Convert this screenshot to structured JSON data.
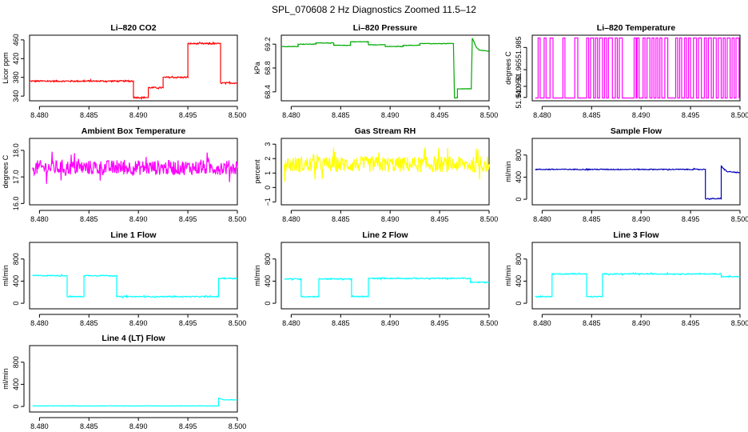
{
  "figure_title": "SPL_070608  2 Hz Diagnostics Zoomed 11.5–12",
  "chart_data": [
    {
      "type": "line",
      "title": "Li–820 CO2",
      "ylabel": "Licor ppm",
      "color": "#ff0000",
      "xlim": [
        8.479,
        8.5
      ],
      "x_ticks": [
        "8.480",
        "8.485",
        "8.490",
        "8.495",
        "8.500"
      ],
      "x_tick_values": [
        8.48,
        8.485,
        8.49,
        8.495,
        8.5
      ],
      "ylim": [
        330,
        470
      ],
      "y_ticks": [
        "340",
        "380",
        "420",
        "460"
      ],
      "y_tick_values": [
        340,
        380,
        420,
        460
      ],
      "noise": 1.5,
      "series": [
        {
          "x": [
            8.479,
            8.4895,
            8.4895,
            8.491,
            8.491,
            8.4925,
            8.4925,
            8.495,
            8.495,
            8.4983,
            8.4983,
            8.5
          ],
          "values": [
            372,
            372,
            337,
            337,
            358,
            358,
            380,
            380,
            452,
            452,
            368,
            368
          ]
        }
      ]
    },
    {
      "type": "line",
      "title": "Li–820 Pressure",
      "ylabel": "kPa",
      "color": "#00aa00",
      "xlim": [
        8.479,
        8.5
      ],
      "x_ticks": [
        "8.480",
        "8.485",
        "8.490",
        "8.495",
        "8.500"
      ],
      "x_tick_values": [
        8.48,
        8.485,
        8.49,
        8.495,
        8.5
      ],
      "ylim": [
        68.25,
        69.35
      ],
      "y_ticks": [
        "68.4",
        "68.8",
        "69.2"
      ],
      "y_tick_values": [
        68.4,
        68.8,
        69.2
      ],
      "noise": 0.004,
      "series": [
        {
          "x": [
            8.479,
            8.4807,
            8.4807,
            8.4825,
            8.4825,
            8.4843,
            8.4843,
            8.486,
            8.486,
            8.4878,
            8.4878,
            8.4895,
            8.4895,
            8.4913,
            8.4913,
            8.493,
            8.493,
            8.4964,
            8.4965,
            8.4968,
            8.4968,
            8.4982,
            8.4983,
            8.4987,
            8.499,
            8.5
          ],
          "values": [
            69.16,
            69.16,
            69.2,
            69.2,
            69.22,
            69.22,
            69.18,
            69.18,
            69.24,
            69.24,
            69.19,
            69.19,
            69.16,
            69.16,
            69.18,
            69.18,
            69.21,
            69.21,
            68.3,
            68.3,
            68.45,
            68.45,
            69.3,
            69.15,
            69.1,
            69.08
          ]
        }
      ]
    },
    {
      "type": "line",
      "title": "Li–820 Temperature",
      "ylabel": "degrees C",
      "color": "#ff00ff",
      "xlim": [
        8.479,
        8.5
      ],
      "x_ticks": [
        "8.480",
        "8.485",
        "8.490",
        "8.495",
        "8.500"
      ],
      "x_tick_values": [
        8.48,
        8.485,
        8.49,
        8.495,
        8.5
      ],
      "ylim": [
        51.937,
        51.996
      ],
      "y_ticks": [
        "51.940",
        "51.950",
        "51.965",
        "51.985"
      ],
      "y_tick_values": [
        51.94,
        51.95,
        51.965,
        51.985
      ],
      "binary": {
        "low": 51.9395,
        "high": 51.9935
      },
      "series": [
        {
          "x": [
            8.4796,
            8.4798,
            8.4802,
            8.4804,
            8.4808,
            8.4811,
            8.4821,
            8.4823,
            8.4833,
            8.4836,
            8.4845,
            8.4847,
            8.4849,
            8.4852,
            8.4854,
            8.4856,
            8.4858,
            8.4861,
            8.4863,
            8.4865,
            8.4867,
            8.4871,
            8.4874,
            8.4876,
            8.4878,
            8.4881,
            8.4893,
            8.4895,
            8.4896,
            8.4898,
            8.4902,
            8.4904,
            8.4906,
            8.4909,
            8.4911,
            8.4913,
            8.4915,
            8.4917,
            8.4919,
            8.4921,
            8.4924,
            8.4927,
            8.4935,
            8.4937,
            8.4939,
            8.4941,
            8.4944,
            8.4946,
            8.4948,
            8.495,
            8.4953,
            8.4956,
            8.4958,
            8.4961,
            8.4964,
            8.4966,
            8.4968,
            8.4971,
            8.4973,
            8.4976,
            8.4978,
            8.4981,
            8.4983,
            8.4985,
            8.4987,
            8.499,
            8.4992,
            8.4994,
            8.4996,
            8.4999
          ]
        }
      ]
    },
    {
      "type": "line",
      "title": "Ambient Box Temperature",
      "ylabel": "degrees C",
      "color": "#ff00ff",
      "xlim": [
        8.479,
        8.5
      ],
      "x_ticks": [
        "8.480",
        "8.485",
        "8.490",
        "8.495",
        "8.500"
      ],
      "x_tick_values": [
        8.48,
        8.485,
        8.49,
        8.495,
        8.5
      ],
      "ylim": [
        15.95,
        18.45
      ],
      "y_ticks": [
        "16.0",
        "17.0",
        "18.0"
      ],
      "y_tick_values": [
        16.0,
        17.0,
        18.0
      ],
      "noise": 0.28,
      "series": [
        {
          "x": [
            8.4793,
            8.5
          ],
          "values": [
            17.35,
            17.35
          ]
        }
      ]
    },
    {
      "type": "line",
      "title": "Gas Stream RH",
      "ylabel": "percent",
      "color": "#ffff00",
      "xlim": [
        8.479,
        8.5
      ],
      "x_ticks": [
        "8.480",
        "8.485",
        "8.490",
        "8.495",
        "8.500"
      ],
      "x_tick_values": [
        8.48,
        8.485,
        8.49,
        8.495,
        8.5
      ],
      "ylim": [
        -1.2,
        3.4
      ],
      "y_ticks": [
        "−1",
        "0",
        "1",
        "2",
        "3"
      ],
      "y_tick_values": [
        -1,
        0,
        1,
        2,
        3
      ],
      "noise": 0.55,
      "series": [
        {
          "x": [
            8.4793,
            8.5
          ],
          "values": [
            1.6,
            1.6
          ]
        }
      ]
    },
    {
      "type": "line",
      "title": "Sample Flow",
      "ylabel": "ml/min",
      "color": "#0000bb",
      "xlim": [
        8.479,
        8.5
      ],
      "x_ticks": [
        "8.480",
        "8.485",
        "8.490",
        "8.495",
        "8.500"
      ],
      "x_tick_values": [
        8.48,
        8.485,
        8.49,
        8.495,
        8.5
      ],
      "ylim": [
        -100,
        1100
      ],
      "y_ticks": [
        "0",
        "400",
        "800"
      ],
      "y_tick_values": [
        0,
        400,
        800
      ],
      "noise": 8,
      "series": [
        {
          "x": [
            8.4793,
            8.4965,
            8.4965,
            8.4981,
            8.4981,
            8.4983,
            8.4987,
            8.5
          ],
          "values": [
            540,
            540,
            10,
            10,
            600,
            560,
            500,
            480
          ]
        }
      ]
    },
    {
      "type": "line",
      "title": "Line 1 Flow",
      "ylabel": "ml/min",
      "color": "#00ffff",
      "xlim": [
        8.479,
        8.5
      ],
      "x_ticks": [
        "8.480",
        "8.485",
        "8.490",
        "8.495",
        "8.500"
      ],
      "x_tick_values": [
        8.48,
        8.485,
        8.49,
        8.495,
        8.5
      ],
      "ylim": [
        -100,
        1100
      ],
      "y_ticks": [
        "0",
        "400",
        "800"
      ],
      "y_tick_values": [
        0,
        400,
        800
      ],
      "noise": 9,
      "series": [
        {
          "x": [
            8.4793,
            8.4828,
            8.4828,
            8.4845,
            8.4845,
            8.4878,
            8.4878,
            8.4981,
            8.4981,
            8.5
          ],
          "values": [
            500,
            500,
            120,
            120,
            500,
            500,
            120,
            120,
            450,
            450
          ]
        }
      ]
    },
    {
      "type": "line",
      "title": "Line 2 Flow",
      "ylabel": "ml/min",
      "color": "#00ffff",
      "xlim": [
        8.479,
        8.5
      ],
      "x_ticks": [
        "8.480",
        "8.485",
        "8.490",
        "8.495",
        "8.500"
      ],
      "x_tick_values": [
        8.48,
        8.485,
        8.49,
        8.495,
        8.5
      ],
      "ylim": [
        -100,
        1100
      ],
      "y_ticks": [
        "0",
        "400",
        "800"
      ],
      "y_tick_values": [
        0,
        400,
        800
      ],
      "noise": 9,
      "series": [
        {
          "x": [
            8.4793,
            8.481,
            8.481,
            8.4828,
            8.4828,
            8.4861,
            8.4861,
            8.4878,
            8.4878,
            8.4981,
            8.4981,
            8.5
          ],
          "values": [
            440,
            440,
            120,
            120,
            440,
            440,
            120,
            120,
            450,
            450,
            380,
            380
          ]
        }
      ]
    },
    {
      "type": "line",
      "title": "Line 3 Flow",
      "ylabel": "ml/min",
      "color": "#00ffff",
      "xlim": [
        8.479,
        8.5
      ],
      "x_ticks": [
        "8.480",
        "8.485",
        "8.490",
        "8.495",
        "8.500"
      ],
      "x_tick_values": [
        8.48,
        8.485,
        8.49,
        8.495,
        8.5
      ],
      "ylim": [
        -100,
        1100
      ],
      "y_ticks": [
        "0",
        "400",
        "800"
      ],
      "y_tick_values": [
        0,
        400,
        800
      ],
      "noise": 9,
      "series": [
        {
          "x": [
            8.4793,
            8.481,
            8.481,
            8.4845,
            8.4845,
            8.4861,
            8.4861,
            8.4981,
            8.4981,
            8.5
          ],
          "values": [
            120,
            120,
            530,
            530,
            120,
            120,
            530,
            530,
            480,
            480
          ]
        }
      ]
    },
    {
      "type": "line",
      "title": "Line 4 (LT) Flow",
      "ylabel": "ml/min",
      "color": "#00ffff",
      "xlim": [
        8.479,
        8.5
      ],
      "x_ticks": [
        "8.480",
        "8.485",
        "8.490",
        "8.495",
        "8.500"
      ],
      "x_tick_values": [
        8.48,
        8.485,
        8.49,
        8.495,
        8.5
      ],
      "ylim": [
        -100,
        1100
      ],
      "y_ticks": [
        "0",
        "400",
        "800"
      ],
      "y_tick_values": [
        0,
        400,
        800
      ],
      "noise": 3,
      "series": [
        {
          "x": [
            8.4793,
            8.4981,
            8.4981,
            8.4983,
            8.4986,
            8.5
          ],
          "values": [
            10,
            10,
            150,
            140,
            120,
            120
          ]
        }
      ]
    }
  ]
}
